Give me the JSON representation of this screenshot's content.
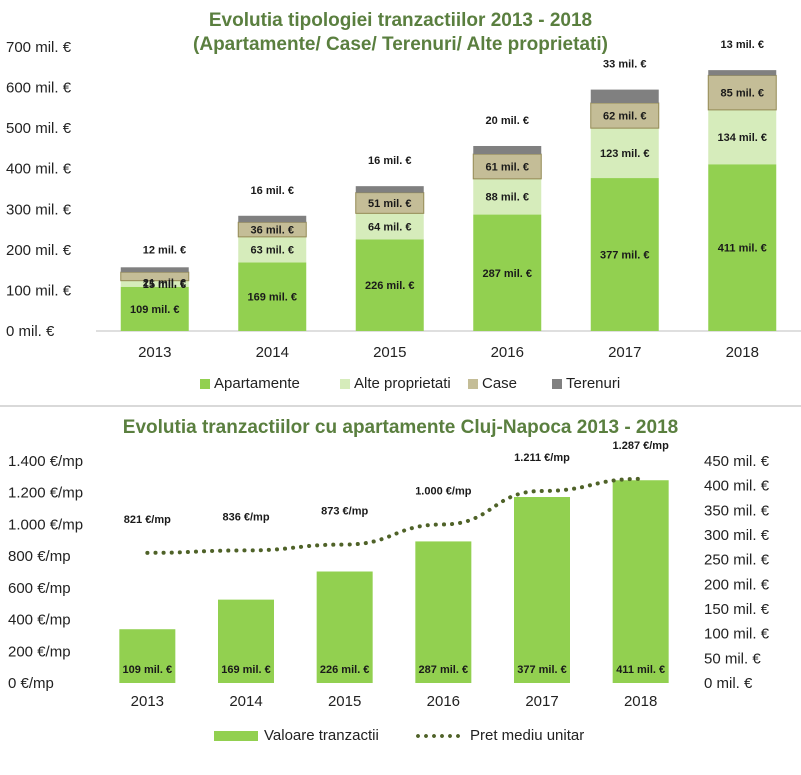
{
  "chart_data": [
    {
      "type": "bar",
      "stacked": true,
      "title": "Evolutia tipologiei tranzactiilor 2013 - 2018",
      "subtitle": "(Apartamente/ Case/ Terenuri/ Alte proprietati)",
      "categories": [
        "2013",
        "2014",
        "2015",
        "2016",
        "2017",
        "2018"
      ],
      "series": [
        {
          "name": "Apartamente",
          "color": "#92d050",
          "values": [
            109,
            169,
            226,
            287,
            377,
            411
          ],
          "labels": [
            "109 mil. €",
            "169 mil. €",
            "226 mil. €",
            "287 mil. €",
            "377 mil. €",
            "411 mil. €"
          ]
        },
        {
          "name": "Alte proprietati",
          "color": "#d6ecbb",
          "values": [
            15,
            63,
            64,
            88,
            123,
            134
          ],
          "labels": [
            "15 mil. €",
            "63 mil. €",
            "64 mil. €",
            "88 mil. €",
            "123 mil. €",
            "134 mil. €"
          ]
        },
        {
          "name": "Case",
          "color": "#c4bd97",
          "values": [
            21,
            36,
            51,
            61,
            62,
            85
          ],
          "labels": [
            "21 mil. €",
            "36 mil. €",
            "51 mil. €",
            "61 mil. €",
            "62 mil. €",
            "85 mil. €"
          ]
        },
        {
          "name": "Terenuri",
          "color": "#808080",
          "values": [
            12,
            16,
            16,
            20,
            33,
            13
          ],
          "labels": [
            "12 mil. €",
            "16 mil. €",
            "16 mil. €",
            "20 mil. €",
            "33 mil. €",
            "13 mil. €"
          ]
        }
      ],
      "ylim": [
        0,
        700
      ],
      "yticks": [
        "0 mil. €",
        "100 mil. €",
        "200 mil. €",
        "300 mil. €",
        "400 mil. €",
        "500 mil. €",
        "600 mil. €",
        "700 mil. €"
      ],
      "legend_position": "bottom",
      "grid": false
    },
    {
      "type": "bar",
      "title": "Evolutia tranzactiilor cu apartamente Cluj-Napoca 2013 - 2018",
      "categories": [
        "2013",
        "2014",
        "2015",
        "2016",
        "2017",
        "2018"
      ],
      "series": [
        {
          "name": "Valoare tranzactii",
          "kind": "bar",
          "axis": "right",
          "color": "#92d050",
          "values": [
            109,
            169,
            226,
            287,
            377,
            411
          ],
          "labels": [
            "109 mil. €",
            "169 mil. €",
            "226 mil. €",
            "287 mil. €",
            "377 mil. €",
            "411 mil. €"
          ]
        },
        {
          "name": "Pret mediu unitar",
          "kind": "line",
          "style": "dotted",
          "axis": "left",
          "color": "#4f6228",
          "values": [
            821,
            836,
            873,
            1000,
            1211,
            1287
          ],
          "labels": [
            "821 €/mp",
            "836 €/mp",
            "873 €/mp",
            "1.000 €/mp",
            "1.211 €/mp",
            "1.287 €/mp"
          ]
        }
      ],
      "y_left": {
        "range": [
          0,
          1400
        ],
        "ticks": [
          "0 €/mp",
          "200 €/mp",
          "400 €/mp",
          "600 €/mp",
          "800 €/mp",
          "1.000 €/mp",
          "1.200 €/mp",
          "1.400 €/mp"
        ]
      },
      "y_right": {
        "range": [
          0,
          450
        ],
        "ticks": [
          "0 mil. €",
          "50 mil. €",
          "100 mil. €",
          "150 mil. €",
          "200 mil. €",
          "250 mil. €",
          "300 mil. €",
          "350 mil. €",
          "400 mil. €",
          "450 mil. €"
        ]
      },
      "legend_position": "bottom",
      "grid": false
    }
  ]
}
